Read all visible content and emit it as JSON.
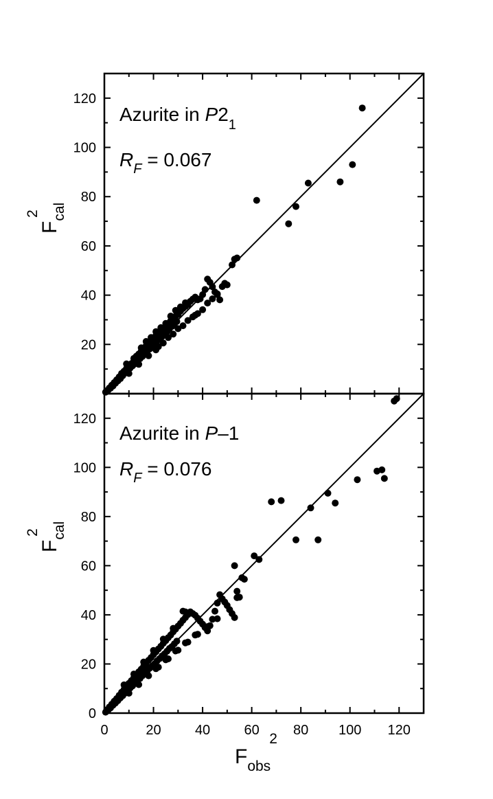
{
  "chart_data": [
    {
      "type": "scatter",
      "annotation_title": {
        "prefix": "Azurite in ",
        "italic": "P",
        "suffix": "2",
        "subscript": "1"
      },
      "annotation_r": {
        "italic": "R",
        "subscript": "F",
        "text": " = 0.067"
      },
      "ylabel": {
        "main": "F",
        "sub": "cal",
        "sup": "2"
      },
      "xlim": [
        0,
        130
      ],
      "ylim": [
        0,
        130
      ],
      "yticks": [
        "20",
        "40",
        "60",
        "80",
        "100",
        "120"
      ],
      "reference_line": "y = x",
      "points": [
        [
          0.5,
          0.6
        ],
        [
          1,
          1.2
        ],
        [
          1.5,
          1.4
        ],
        [
          2,
          2.3
        ],
        [
          2.5,
          2.2
        ],
        [
          3,
          3.4
        ],
        [
          3.5,
          3.1
        ],
        [
          4,
          4.5
        ],
        [
          4.5,
          4.2
        ],
        [
          5,
          5.6
        ],
        [
          5.5,
          5.2
        ],
        [
          6,
          6.8
        ],
        [
          6.5,
          6.1
        ],
        [
          7,
          8.2
        ],
        [
          7.5,
          7.3
        ],
        [
          8,
          9.1
        ],
        [
          8.5,
          8.4
        ],
        [
          9,
          10.2
        ],
        [
          9.5,
          9.5
        ],
        [
          10,
          11.3
        ],
        [
          10.5,
          10.4
        ],
        [
          11,
          12.2
        ],
        [
          11.5,
          11.3
        ],
        [
          12,
          13.1
        ],
        [
          12.5,
          12.2
        ],
        [
          13,
          15.2
        ],
        [
          13.5,
          13.1
        ],
        [
          14,
          16.1
        ],
        [
          14.5,
          14.2
        ],
        [
          15,
          17.2
        ],
        [
          15.5,
          15.1
        ],
        [
          16,
          18.4
        ],
        [
          16.5,
          16.2
        ],
        [
          17,
          19.5
        ],
        [
          17.5,
          17.3
        ],
        [
          18,
          20.6
        ],
        [
          18.5,
          18.2
        ],
        [
          19,
          21.4
        ],
        [
          19.5,
          19.1
        ],
        [
          20,
          22.5
        ],
        [
          20.5,
          20.2
        ],
        [
          21,
          23.6
        ],
        [
          21.5,
          21.4
        ],
        [
          22,
          24.5
        ],
        [
          22.5,
          22.3
        ],
        [
          23,
          25.4
        ],
        [
          23.5,
          23.2
        ],
        [
          24,
          26.3
        ],
        [
          24.5,
          24.1
        ],
        [
          25,
          27.4
        ],
        [
          25.5,
          25.2
        ],
        [
          26,
          28.5
        ],
        [
          26.5,
          26.4
        ],
        [
          27,
          29.6
        ],
        [
          27.5,
          27.3
        ],
        [
          28,
          30.5
        ],
        [
          28.5,
          28.2
        ],
        [
          29,
          31.4
        ],
        [
          29.5,
          29.3
        ],
        [
          30,
          32.2
        ],
        [
          31,
          33.5
        ],
        [
          32,
          34.6
        ],
        [
          33,
          35.4
        ],
        [
          34,
          36.2
        ],
        [
          35,
          37.5
        ],
        [
          36,
          38.4
        ],
        [
          37,
          39.2
        ],
        [
          38,
          38.1
        ],
        [
          39,
          38.5
        ],
        [
          40,
          40.2
        ],
        [
          41,
          42.3
        ],
        [
          42,
          46.5
        ],
        [
          43,
          45.2
        ],
        [
          44,
          43.4
        ],
        [
          45,
          41.3
        ],
        [
          46,
          40.2
        ],
        [
          47,
          38.1
        ],
        [
          48,
          43.5
        ],
        [
          49,
          44.8
        ],
        [
          50,
          44.2
        ],
        [
          9,
          12.1
        ],
        [
          12,
          14.3
        ],
        [
          15,
          18.6
        ],
        [
          17,
          21.2
        ],
        [
          19,
          22.8
        ],
        [
          21,
          25.2
        ],
        [
          23,
          26.8
        ],
        [
          25,
          28.5
        ],
        [
          27,
          31.5
        ],
        [
          29,
          33.8
        ],
        [
          31,
          35.2
        ],
        [
          33,
          36.9
        ],
        [
          10,
          8.2
        ],
        [
          14,
          11.9
        ],
        [
          18,
          15.4
        ],
        [
          22,
          19.1
        ],
        [
          26,
          22.8
        ],
        [
          30,
          26.4
        ],
        [
          34,
          29.7
        ],
        [
          36,
          31.2
        ],
        [
          38,
          32.5
        ],
        [
          40,
          34.1
        ],
        [
          42,
          36.8
        ],
        [
          44,
          38.5
        ],
        [
          46,
          40.5
        ],
        [
          21,
          17.8
        ],
        [
          24,
          20.6
        ],
        [
          28,
          24.2
        ],
        [
          32,
          27.6
        ],
        [
          37,
          31.9
        ],
        [
          52,
          52.3
        ],
        [
          53,
          54.6
        ],
        [
          54,
          55.1
        ],
        [
          62,
          78.5
        ],
        [
          75,
          69
        ],
        [
          78,
          76
        ],
        [
          83,
          85.5
        ],
        [
          96,
          86
        ],
        [
          101,
          93
        ],
        [
          105,
          116
        ]
      ]
    },
    {
      "type": "scatter",
      "annotation_title": {
        "prefix": "Azurite in ",
        "italic": "P",
        "suffix": "–1",
        "subscript": ""
      },
      "annotation_r": {
        "italic": "R",
        "subscript": "F",
        "text": " = 0.076"
      },
      "ylabel": {
        "main": "F",
        "sub": "cal",
        "sup": "2"
      },
      "xlabel": {
        "main": "F",
        "sub": "obs",
        "sup": "2"
      },
      "xlim": [
        0,
        130
      ],
      "ylim": [
        0,
        130
      ],
      "xticks": [
        "0",
        "20",
        "40",
        "60",
        "80",
        "100",
        "120"
      ],
      "yticks": [
        "0",
        "20",
        "40",
        "60",
        "80",
        "100",
        "120"
      ],
      "reference_line": "y = x",
      "points": [
        [
          0.5,
          0.4
        ],
        [
          1,
          1.3
        ],
        [
          1.5,
          1.2
        ],
        [
          2,
          2.5
        ],
        [
          2.5,
          2.1
        ],
        [
          3,
          3.6
        ],
        [
          3.5,
          3.2
        ],
        [
          4,
          4.8
        ],
        [
          4.5,
          4.1
        ],
        [
          5,
          5.9
        ],
        [
          5.5,
          5.1
        ],
        [
          6,
          7.2
        ],
        [
          6.5,
          6.2
        ],
        [
          7,
          8.5
        ],
        [
          7.5,
          7.1
        ],
        [
          8,
          9.6
        ],
        [
          8.5,
          8.2
        ],
        [
          9,
          10.8
        ],
        [
          9.5,
          9.3
        ],
        [
          10,
          12.1
        ],
        [
          10.5,
          10.2
        ],
        [
          11,
          13.2
        ],
        [
          11.5,
          11.1
        ],
        [
          12,
          14.4
        ],
        [
          12.5,
          12.3
        ],
        [
          13,
          15.6
        ],
        [
          13.5,
          13.2
        ],
        [
          14,
          16.8
        ],
        [
          14.5,
          14.1
        ],
        [
          15,
          17.9
        ],
        [
          15.5,
          15.2
        ],
        [
          16,
          19.1
        ],
        [
          16.5,
          16.1
        ],
        [
          17,
          20.3
        ],
        [
          17.5,
          17.2
        ],
        [
          18,
          21.5
        ],
        [
          18.5,
          18.3
        ],
        [
          19,
          22.6
        ],
        [
          19.5,
          19.2
        ],
        [
          20,
          23.8
        ],
        [
          20.5,
          20.1
        ],
        [
          21,
          24.9
        ],
        [
          21.5,
          21.3
        ],
        [
          22,
          26.1
        ],
        [
          22.5,
          22.2
        ],
        [
          23,
          27.2
        ],
        [
          23.5,
          23.3
        ],
        [
          24,
          28.4
        ],
        [
          24.5,
          24.1
        ],
        [
          25,
          29.5
        ],
        [
          25.5,
          25.2
        ],
        [
          26,
          30.7
        ],
        [
          26.5,
          26.3
        ],
        [
          27,
          31.8
        ],
        [
          27.5,
          27.1
        ],
        [
          28,
          33.1
        ],
        [
          28.5,
          28.2
        ],
        [
          29,
          34.2
        ],
        [
          29.5,
          29.3
        ],
        [
          30,
          35.4
        ],
        [
          31,
          36.5
        ],
        [
          32,
          37.8
        ],
        [
          33,
          38.9
        ],
        [
          34,
          40.1
        ],
        [
          35,
          41.2
        ],
        [
          36,
          40.5
        ],
        [
          37,
          39.8
        ],
        [
          38,
          38.6
        ],
        [
          39,
          37.4
        ],
        [
          40,
          36.2
        ],
        [
          41,
          34.8
        ],
        [
          42,
          33.5
        ],
        [
          43,
          35.6
        ],
        [
          44,
          38.2
        ],
        [
          45,
          41.5
        ],
        [
          46,
          44.8
        ],
        [
          47,
          48.2
        ],
        [
          48,
          46.5
        ],
        [
          49,
          45.2
        ],
        [
          50,
          43.8
        ],
        [
          51,
          42.1
        ],
        [
          52,
          40.5
        ],
        [
          53,
          38.9
        ],
        [
          54,
          49.6
        ],
        [
          55,
          47.2
        ],
        [
          56,
          55.1
        ],
        [
          32,
          41.5
        ],
        [
          33,
          41.2
        ],
        [
          8,
          11.5
        ],
        [
          12,
          15.9
        ],
        [
          16,
          20.8
        ],
        [
          20,
          25.5
        ],
        [
          24,
          30.1
        ],
        [
          28,
          34.5
        ],
        [
          10,
          8.1
        ],
        [
          14,
          11.6
        ],
        [
          18,
          15.2
        ],
        [
          22,
          18.7
        ],
        [
          26,
          22.1
        ],
        [
          30,
          25.6
        ],
        [
          34,
          28.9
        ],
        [
          38,
          32.1
        ],
        [
          42,
          35.2
        ],
        [
          46,
          38.4
        ],
        [
          21,
          18.1
        ],
        [
          25,
          21.7
        ],
        [
          29,
          25.3
        ],
        [
          33,
          28.6
        ],
        [
          37,
          31.8
        ],
        [
          41,
          34.9
        ],
        [
          53,
          60
        ],
        [
          54,
          47
        ],
        [
          57,
          54.5
        ],
        [
          61,
          64
        ],
        [
          63,
          62.5
        ],
        [
          68,
          86
        ],
        [
          72,
          86.5
        ],
        [
          78,
          70.5
        ],
        [
          84,
          83.5
        ],
        [
          87,
          70.5
        ],
        [
          91,
          89.5
        ],
        [
          94,
          85.5
        ],
        [
          103,
          95
        ],
        [
          111,
          98.5
        ],
        [
          113,
          99
        ],
        [
          114,
          95.5
        ],
        [
          118,
          127
        ],
        [
          119,
          128
        ]
      ]
    }
  ]
}
